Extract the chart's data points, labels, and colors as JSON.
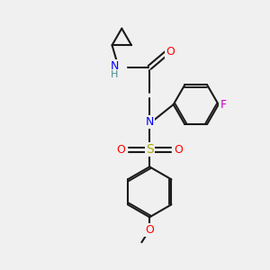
{
  "bg_color": "#f0f0f0",
  "bond_color": "#1a1a1a",
  "bond_width": 1.5,
  "figsize": [
    3.0,
    3.0
  ],
  "dpi": 100,
  "atom_colors": {
    "N": "#0000ff",
    "O": "#ff0000",
    "F": "#cc00cc",
    "S": "#aaaa00",
    "H": "#4a8a8a",
    "C": "#1a1a1a"
  },
  "font_size": 9
}
